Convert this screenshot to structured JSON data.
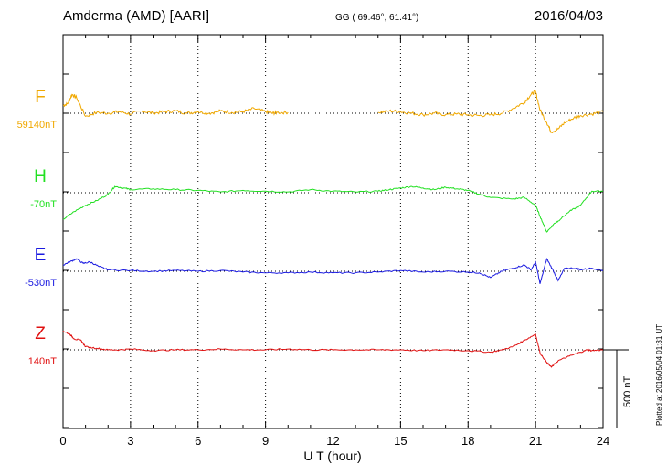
{
  "header": {
    "station": "Amderma (AMD)  [AARI]",
    "coords": "GG ( 69.46°,  61.41°)",
    "date": "2016/04/03"
  },
  "side_note": "Plotted at 2016/05/04 01:31  UT",
  "scale_bar_label": "500 nT",
  "chart_data": {
    "type": "line",
    "xlabel": "U T (hour)",
    "xlim": [
      0,
      24
    ],
    "x_ticks": [
      "0",
      "3",
      "6",
      "9",
      "12",
      "15",
      "18",
      "21",
      "24"
    ],
    "grid": "dotted",
    "units": "nT",
    "series": [
      {
        "name": "F",
        "baseline_label": "59140nT",
        "color": "#f0a800",
        "points": [
          [
            0,
            50
          ],
          [
            0.2,
            60
          ],
          [
            0.4,
            120
          ],
          [
            0.6,
            100
          ],
          [
            1,
            -20
          ],
          [
            1.5,
            5
          ],
          [
            2,
            0
          ],
          [
            2.5,
            10
          ],
          [
            3,
            -5
          ],
          [
            3.5,
            15
          ],
          [
            4,
            0
          ],
          [
            4.5,
            10
          ],
          [
            5,
            15
          ],
          [
            5.5,
            0
          ],
          [
            6,
            10
          ],
          [
            6.5,
            0
          ],
          [
            7,
            15
          ],
          [
            7.5,
            5
          ],
          [
            8,
            10
          ],
          [
            8.5,
            30
          ],
          [
            9,
            10
          ],
          [
            9.3,
            0
          ],
          [
            9.5,
            5
          ],
          [
            10,
            5
          ],
          [
            null,
            null
          ],
          [
            14,
            5
          ],
          [
            14.5,
            15
          ],
          [
            15,
            10
          ],
          [
            15.5,
            0
          ],
          [
            16,
            -10
          ],
          [
            16.5,
            0
          ],
          [
            17,
            -10
          ],
          [
            17.5,
            -5
          ],
          [
            18,
            -10
          ],
          [
            18.5,
            -15
          ],
          [
            19,
            -10
          ],
          [
            19.5,
            0
          ],
          [
            20,
            30
          ],
          [
            20.5,
            70
          ],
          [
            20.8,
            120
          ],
          [
            21,
            140
          ],
          [
            21.2,
            20
          ],
          [
            21.5,
            -60
          ],
          [
            21.7,
            -120
          ],
          [
            22,
            -100
          ],
          [
            22.3,
            -60
          ],
          [
            22.7,
            -30
          ],
          [
            23,
            -15
          ],
          [
            23.5,
            -5
          ],
          [
            24,
            10
          ]
        ]
      },
      {
        "name": "H",
        "baseline_label": "-70nT",
        "color": "#22e022",
        "points": [
          [
            0,
            -170
          ],
          [
            0.5,
            -120
          ],
          [
            1,
            -80
          ],
          [
            1.5,
            -50
          ],
          [
            2,
            -10
          ],
          [
            2.3,
            40
          ],
          [
            2.7,
            30
          ],
          [
            3,
            20
          ],
          [
            4,
            25
          ],
          [
            5,
            20
          ],
          [
            6,
            15
          ],
          [
            7,
            5
          ],
          [
            8,
            15
          ],
          [
            9,
            10
          ],
          [
            10,
            5
          ],
          [
            11,
            20
          ],
          [
            12,
            10
          ],
          [
            13,
            5
          ],
          [
            14,
            10
          ],
          [
            14.5,
            20
          ],
          [
            15,
            30
          ],
          [
            15.5,
            40
          ],
          [
            16,
            30
          ],
          [
            16.5,
            20
          ],
          [
            17,
            35
          ],
          [
            17.5,
            25
          ],
          [
            18,
            15
          ],
          [
            18.5,
            -10
          ],
          [
            19,
            -30
          ],
          [
            20,
            -40
          ],
          [
            20.5,
            -30
          ],
          [
            21,
            -80
          ],
          [
            21.2,
            -150
          ],
          [
            21.5,
            -250
          ],
          [
            21.8,
            -200
          ],
          [
            22,
            -180
          ],
          [
            22.5,
            -120
          ],
          [
            23,
            -80
          ],
          [
            23.5,
            10
          ],
          [
            24,
            10
          ]
        ]
      },
      {
        "name": "E",
        "baseline_label": "-530nT",
        "color": "#1a1ae0",
        "points": [
          [
            0,
            40
          ],
          [
            0.3,
            60
          ],
          [
            0.6,
            80
          ],
          [
            0.9,
            50
          ],
          [
            1.2,
            60
          ],
          [
            1.6,
            30
          ],
          [
            2,
            10
          ],
          [
            3,
            5
          ],
          [
            4,
            0
          ],
          [
            5,
            5
          ],
          [
            6,
            0
          ],
          [
            7,
            5
          ],
          [
            8,
            -5
          ],
          [
            9,
            -10
          ],
          [
            10,
            -10
          ],
          [
            11,
            -5
          ],
          [
            12,
            -10
          ],
          [
            13,
            -10
          ],
          [
            14,
            -5
          ],
          [
            15,
            5
          ],
          [
            16,
            -5
          ],
          [
            17,
            0
          ],
          [
            18,
            -5
          ],
          [
            18.5,
            -10
          ],
          [
            19,
            -40
          ],
          [
            19.5,
            0
          ],
          [
            20,
            20
          ],
          [
            20.5,
            40
          ],
          [
            20.8,
            10
          ],
          [
            21,
            60
          ],
          [
            21.2,
            -80
          ],
          [
            21.5,
            80
          ],
          [
            21.8,
            0
          ],
          [
            22,
            -60
          ],
          [
            22.3,
            20
          ],
          [
            22.8,
            20
          ],
          [
            23,
            10
          ],
          [
            23.5,
            20
          ],
          [
            24,
            5
          ]
        ]
      },
      {
        "name": "Z",
        "baseline_label": "140nT",
        "color": "#e01010",
        "points": [
          [
            0,
            120
          ],
          [
            0.3,
            100
          ],
          [
            0.5,
            70
          ],
          [
            0.8,
            60
          ],
          [
            1,
            20
          ],
          [
            1.5,
            10
          ],
          [
            2,
            0
          ],
          [
            2.5,
            0
          ],
          [
            3,
            5
          ],
          [
            4,
            -5
          ],
          [
            5,
            0
          ],
          [
            6,
            0
          ],
          [
            7,
            5
          ],
          [
            8,
            0
          ],
          [
            9,
            0
          ],
          [
            10,
            5
          ],
          [
            11,
            0
          ],
          [
            12,
            0
          ],
          [
            13,
            0
          ],
          [
            14,
            0
          ],
          [
            15,
            0
          ],
          [
            16,
            -5
          ],
          [
            17,
            0
          ],
          [
            18,
            -5
          ],
          [
            19,
            -15
          ],
          [
            19.5,
            0
          ],
          [
            20,
            20
          ],
          [
            20.5,
            60
          ],
          [
            21,
            100
          ],
          [
            21.2,
            -20
          ],
          [
            21.5,
            -80
          ],
          [
            21.7,
            -110
          ],
          [
            22,
            -70
          ],
          [
            22.5,
            -40
          ],
          [
            23,
            -15
          ],
          [
            23.3,
            0
          ],
          [
            23.5,
            -5
          ],
          [
            24,
            0
          ]
        ]
      }
    ],
    "scale_nT": 500
  }
}
